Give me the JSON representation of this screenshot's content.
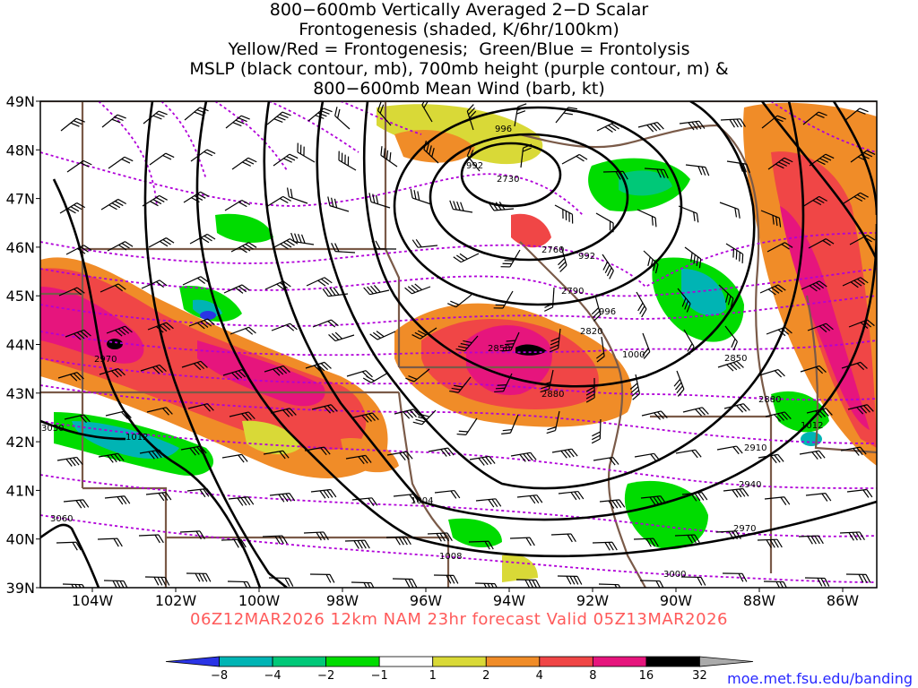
{
  "title_lines": [
    "800−600mb Vertically Averaged 2−D Scalar",
    "Frontogenesis (shaded, K/6hr/100km)",
    "Yellow/Red = Frontogenesis;  Green/Blue = Frontolysis",
    "MSLP (black contour, mb), 700mb height (purple contour, m) &",
    "800−600mb Mean Wind (barb, kt)"
  ],
  "lat_labels": [
    "49N",
    "48N",
    "47N",
    "46N",
    "45N",
    "44N",
    "43N",
    "42N",
    "41N",
    "40N",
    "39N"
  ],
  "lon_labels": [
    "104W",
    "102W",
    "100W",
    "98W",
    "96W",
    "94W",
    "92W",
    "90W",
    "88W",
    "86W"
  ],
  "valid_text": "06Z12MAR2026 12km NAM 23hr forecast Valid 05Z13MAR2026",
  "credit": "moe.met.fsu.edu/banding",
  "colorbar": {
    "labels": [
      "−8",
      "−4",
      "−2",
      "−1",
      "1",
      "2",
      "4",
      "8",
      "16",
      "32"
    ],
    "colors": [
      "#2a34e6",
      "#00b4b4",
      "#00c878",
      "#00dc00",
      "#ffffff",
      "#d9d937",
      "#f08c28",
      "#f04646",
      "#e6157d",
      "#000000",
      "#aaaaaa"
    ]
  },
  "mslp_labels": [
    "996",
    "992",
    "992",
    "996",
    "1000",
    "1004",
    "1008",
    "1012",
    "1012"
  ],
  "height_labels": [
    "2730",
    "2760",
    "2790",
    "2820",
    "2850",
    "2850",
    "2880",
    "2880",
    "2910",
    "2940",
    "2970",
    "2970",
    "3000",
    "3030",
    "3060"
  ],
  "colors": {
    "state_border": "#7a5a48",
    "mslp": "#000000",
    "height": "#b000d8"
  }
}
